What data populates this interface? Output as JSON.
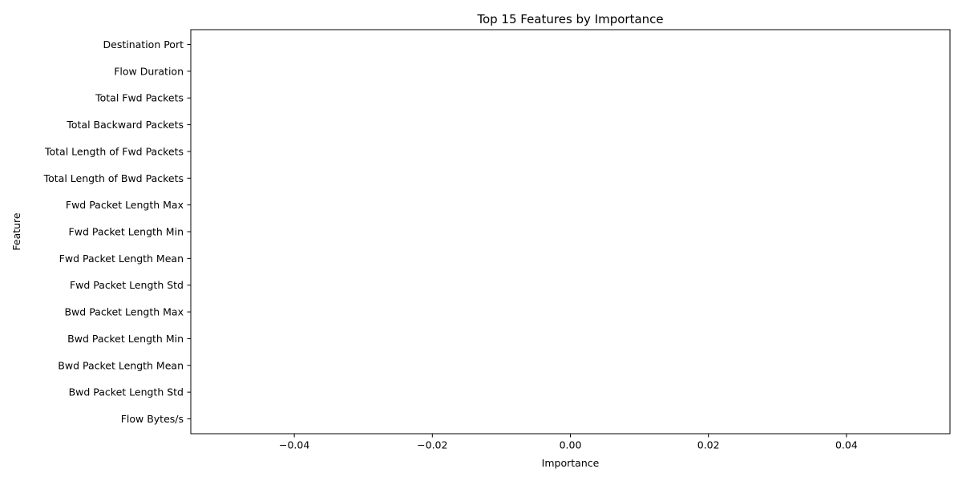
{
  "chart_data": {
    "type": "bar",
    "orientation": "horizontal",
    "title": "Top 15 Features by Importance",
    "xlabel": "Importance",
    "ylabel": "Feature",
    "categories": [
      "Destination Port",
      "Flow Duration",
      "Total Fwd Packets",
      "Total Backward Packets",
      "Total Length of Fwd Packets",
      "Total Length of Bwd Packets",
      "Fwd Packet Length Max",
      "Fwd Packet Length Min",
      "Fwd Packet Length Mean",
      "Fwd Packet Length Std",
      "Bwd Packet Length Max",
      "Bwd Packet Length Min",
      "Bwd Packet Length Mean",
      "Bwd Packet Length Std",
      "Flow Bytes/s"
    ],
    "values": [
      0,
      0,
      0,
      0,
      0,
      0,
      0,
      0,
      0,
      0,
      0,
      0,
      0,
      0,
      0
    ],
    "xlim": [
      -0.055,
      0.055
    ],
    "xticks": [
      -0.04,
      -0.02,
      0.0,
      0.02,
      0.04
    ],
    "xtick_labels": [
      "−0.04",
      "−0.02",
      "0.00",
      "0.02",
      "0.04"
    ],
    "grid": false,
    "bar_color": "#1f77b4"
  }
}
